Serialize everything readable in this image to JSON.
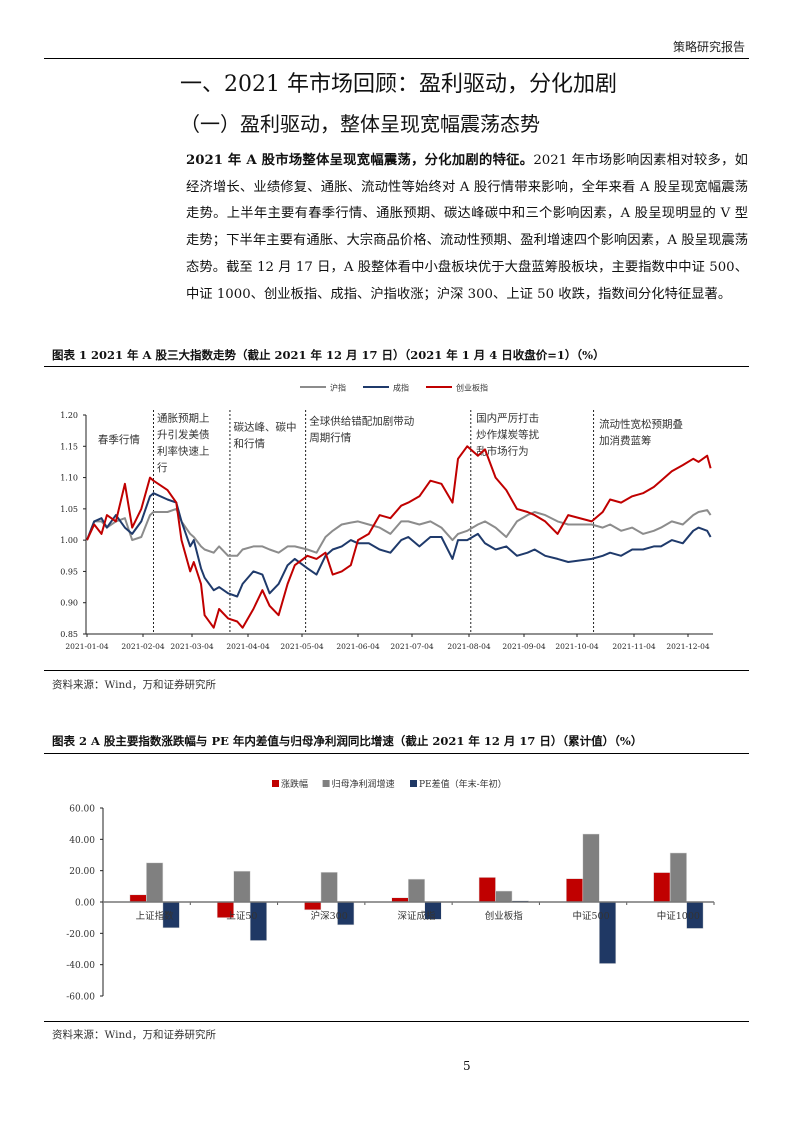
{
  "header": {
    "label": "策略研究报告"
  },
  "section": {
    "h1": "一、2021 年市场回顾：盈利驱动，分化加剧",
    "h2": "（一）盈利驱动，整体呈现宽幅震荡态势",
    "para_bold": "2021 年 A 股市场整体呈现宽幅震荡，分化加剧的特征。",
    "para_rest": "2021 年市场影响因素相对较多，如经济增长、业绩修复、通胀、流动性等始终对 A 股行情带来影响，全年来看 A 股呈现宽幅震荡走势。上半年主要有春季行情、通胀预期、碳达峰碳中和三个影响因素，A 股呈现明显的 V 型走势；下半年主要有通胀、大宗商品价格、流动性预期、盈利增速四个影响因素，A 股呈现震荡态势。截至 12 月 17 日，A 股整体看中小盘板块优于大盘蓝筹股板块，主要指数中中证 500、中证 1000、创业板指、成指、沪指收涨；沪深 300、上证 50 收跌，指数间分化特征显著。"
  },
  "figure1": {
    "title": "图表 1   2021 年 A 股三大指数走势（截止 2021 年 12 月 17 日）（2021 年 1 月 4 日收盘价=1）（%）",
    "source": "资料来源：Wind，万和证券研究所"
  },
  "figure2": {
    "title": "图表 2   A 股主要指数涨跌幅与 PE 年内差值与归母净利润同比增速（截止 2021 年 12 月 17 日）（累计值）（%）",
    "source": "资料来源：Wind，万和证券研究所"
  },
  "footer": {
    "page_number": "5"
  },
  "chart_data": [
    {
      "type": "line",
      "title": "2021年A股三大指数走势（2021年1月4日收盘价=1）",
      "xlabel": "",
      "ylabel": "",
      "ylim": [
        0.85,
        1.2
      ],
      "yticks": [
        "0.85",
        "0.90",
        "0.95",
        "1.00",
        "1.05",
        "1.10",
        "1.15",
        "1.20"
      ],
      "xticks": [
        "2021-01-04",
        "2021-02-04",
        "2021-03-04",
        "2021-04-04",
        "2021-05-04",
        "2021-06-04",
        "2021-07-04",
        "2021-08-04",
        "2021-09-04",
        "2021-10-04",
        "2021-11-04",
        "2021-12-04"
      ],
      "legend_position": "top",
      "grid": false,
      "x": [
        "01-04",
        "01-08",
        "01-12",
        "01-15",
        "01-20",
        "01-25",
        "01-29",
        "02-03",
        "02-08",
        "02-10",
        "02-18",
        "02-23",
        "02-26",
        "03-03",
        "03-05",
        "03-09",
        "03-11",
        "03-16",
        "03-19",
        "03-24",
        "03-29",
        "04-01",
        "04-07",
        "04-12",
        "04-16",
        "04-21",
        "04-26",
        "04-30",
        "05-07",
        "05-12",
        "05-17",
        "05-21",
        "05-26",
        "05-31",
        "06-04",
        "06-10",
        "06-16",
        "06-22",
        "06-28",
        "07-02",
        "07-08",
        "07-14",
        "07-20",
        "07-26",
        "07-29",
        "08-03",
        "08-09",
        "08-13",
        "08-19",
        "08-25",
        "08-31",
        "09-06",
        "09-10",
        "09-16",
        "09-23",
        "09-29",
        "10-12",
        "10-18",
        "10-22",
        "10-28",
        "11-03",
        "11-09",
        "11-15",
        "11-19",
        "11-25",
        "12-01",
        "12-07",
        "12-10",
        "12-15",
        "12-17"
      ],
      "series": [
        {
          "name": "沪指",
          "color": "#8c8c8c",
          "values": [
            1.0,
            1.03,
            1.03,
            1.02,
            1.03,
            1.035,
            1.0,
            1.005,
            1.04,
            1.045,
            1.045,
            1.05,
            1.03,
            1.01,
            1.005,
            0.99,
            0.985,
            0.98,
            0.99,
            0.975,
            0.975,
            0.985,
            0.99,
            0.99,
            0.985,
            0.98,
            0.99,
            0.99,
            0.985,
            0.98,
            1.005,
            1.015,
            1.025,
            1.028,
            1.03,
            1.025,
            1.02,
            1.01,
            1.03,
            1.03,
            1.025,
            1.03,
            1.02,
            1.0,
            1.01,
            1.015,
            1.025,
            1.03,
            1.02,
            1.005,
            1.03,
            1.04,
            1.045,
            1.04,
            1.03,
            1.025,
            1.025,
            1.02,
            1.025,
            1.015,
            1.02,
            1.01,
            1.015,
            1.02,
            1.03,
            1.025,
            1.04,
            1.045,
            1.048,
            1.04
          ]
        },
        {
          "name": "成指",
          "color": "#1f3a6b",
          "values": [
            1.0,
            1.03,
            1.035,
            1.02,
            1.04,
            1.02,
            1.01,
            1.03,
            1.07,
            1.075,
            1.065,
            1.06,
            1.03,
            0.99,
            1.0,
            0.955,
            0.94,
            0.92,
            0.925,
            0.915,
            0.91,
            0.93,
            0.95,
            0.945,
            0.915,
            0.93,
            0.96,
            0.97,
            0.955,
            0.945,
            0.975,
            0.985,
            0.99,
            1.0,
            0.995,
            0.995,
            0.985,
            0.98,
            1.0,
            1.005,
            0.99,
            1.005,
            1.005,
            0.97,
            1.0,
            1.0,
            1.01,
            0.995,
            0.985,
            0.99,
            0.975,
            0.98,
            0.985,
            0.975,
            0.97,
            0.965,
            0.97,
            0.975,
            0.98,
            0.975,
            0.985,
            0.985,
            0.99,
            0.99,
            1.0,
            0.995,
            1.015,
            1.02,
            1.015,
            1.005
          ]
        },
        {
          "name": "创业板指",
          "color": "#c00000",
          "values": [
            1.0,
            1.025,
            1.01,
            1.04,
            1.03,
            1.09,
            1.02,
            1.05,
            1.1,
            1.095,
            1.08,
            1.06,
            1.0,
            0.95,
            0.965,
            0.93,
            0.88,
            0.86,
            0.89,
            0.875,
            0.87,
            0.86,
            0.89,
            0.92,
            0.895,
            0.88,
            0.93,
            0.96,
            0.975,
            0.97,
            0.98,
            0.945,
            0.95,
            0.96,
            1.0,
            1.01,
            1.04,
            1.035,
            1.055,
            1.06,
            1.07,
            1.095,
            1.09,
            1.06,
            1.13,
            1.15,
            1.135,
            1.145,
            1.1,
            1.08,
            1.05,
            1.045,
            1.04,
            1.03,
            1.01,
            1.04,
            1.03,
            1.045,
            1.065,
            1.06,
            1.07,
            1.075,
            1.085,
            1.095,
            1.11,
            1.12,
            1.13,
            1.125,
            1.135,
            1.115
          ]
        }
      ],
      "dividers": [
        "02-10",
        "03-25",
        "05-06",
        "08-05",
        "10-13"
      ],
      "annotations": [
        {
          "text_lines": [
            "春季行情"
          ],
          "x": "01-10",
          "y": 1.155
        },
        {
          "text_lines": [
            "通胀预期上",
            "升引发美债",
            "利率快速上",
            "行"
          ],
          "x": "02-12",
          "y": 1.19
        },
        {
          "text_lines": [
            "碳达峰、碳中",
            "和行情"
          ],
          "x": "03-27",
          "y": 1.175
        },
        {
          "text_lines": [
            "全球供给错配加剧带动",
            "周期行情"
          ],
          "x": "05-08",
          "y": 1.185
        },
        {
          "text_lines": [
            "国内严厉打击",
            "炒作煤炭等扰",
            "乱市场行为"
          ],
          "x": "08-08",
          "y": 1.19
        },
        {
          "text_lines": [
            "流动性宽松预期叠",
            "加消费蓝筹"
          ],
          "x": "10-16",
          "y": 1.18
        }
      ]
    },
    {
      "type": "bar",
      "title": "A股主要指数涨跌幅与PE年内差值与归母净利润同比增速",
      "xlabel": "",
      "ylabel": "",
      "ylim": [
        -60,
        60
      ],
      "yticks": [
        "-60.00",
        "-40.00",
        "-20.00",
        "0.00",
        "20.00",
        "40.00",
        "60.00"
      ],
      "legend_position": "top",
      "grid": false,
      "categories": [
        "上证指数",
        "上证50",
        "沪深300",
        "深证成指",
        "创业板指",
        "中证500",
        "中证1000"
      ],
      "series": [
        {
          "name": "涨跌幅",
          "color": "#c00000",
          "values": [
            4.6,
            -10.0,
            -5.0,
            2.7,
            15.7,
            14.9,
            18.8
          ]
        },
        {
          "name": "归母净利润增速",
          "color": "#808080",
          "values": [
            25.0,
            19.7,
            19.0,
            14.6,
            7.0,
            43.4,
            31.3
          ]
        },
        {
          "name": "PE差值（年末-年初）",
          "color": "#1f3864",
          "values": [
            -16.5,
            -24.6,
            -14.6,
            -11.1,
            0.8,
            -39.3,
            -16.9
          ]
        }
      ]
    }
  ]
}
